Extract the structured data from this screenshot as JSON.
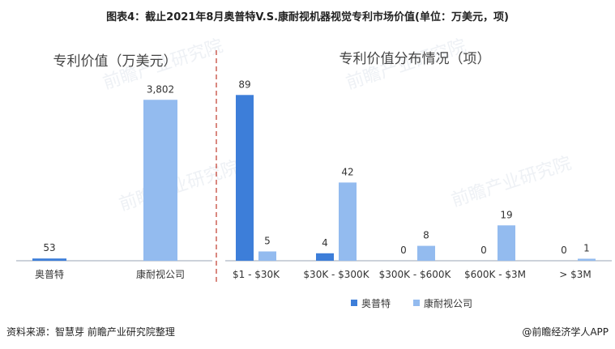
{
  "title": "图表4：截止2021年8月奥普特V.S.康耐视机器视觉专利市场价值(单位：万美元，项)",
  "source": "资料来源：智慧芽 前瞻产业研究院整理",
  "brand": "@前瞻经济学人APP",
  "watermark": "前瞻产业研究院",
  "colors": {
    "aopute": "#3d7ed9",
    "cognex": "#93bbef",
    "divider": "#c0392b",
    "axis": "#9aa4b5"
  },
  "chart_data": [
    {
      "type": "bar",
      "title": "专利价值（万美元）",
      "categories": [
        "奥普特",
        "康耐视公司"
      ],
      "values": [
        53,
        3802
      ],
      "value_labels": [
        "53",
        "3,802"
      ],
      "ylim": [
        0,
        4400
      ]
    },
    {
      "type": "bar",
      "title": "专利价值分布情况（项）",
      "categories": [
        "$1 - $30K",
        "$30K - $300K",
        "$300K - $600K",
        "$600K - $3M",
        "> $3M"
      ],
      "series": [
        {
          "name": "奥普特",
          "values": [
            89,
            4,
            0,
            0,
            0
          ]
        },
        {
          "name": "康耐视公司",
          "values": [
            5,
            42,
            8,
            19,
            1
          ]
        }
      ],
      "ylim": [
        0,
        100
      ]
    }
  ]
}
